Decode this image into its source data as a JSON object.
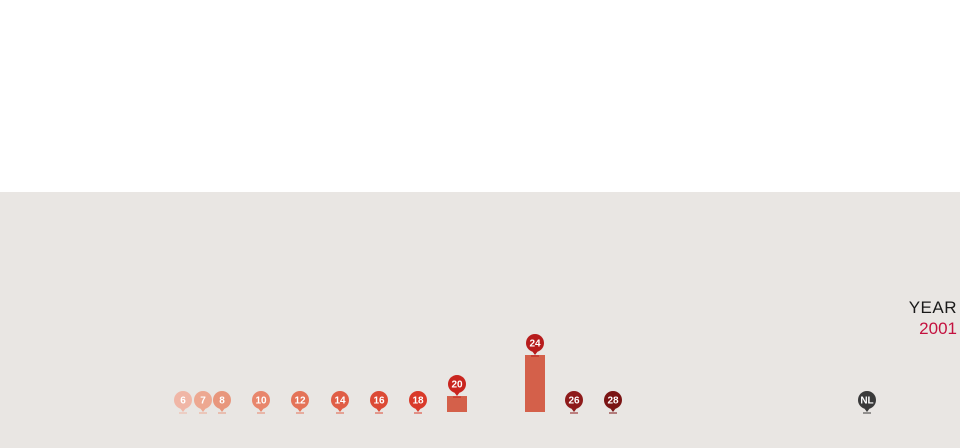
{
  "year": {
    "label": "YEAR",
    "value": "2001"
  },
  "chart_data": {
    "type": "bar",
    "categories": [
      "6",
      "7",
      "8",
      "10",
      "12",
      "14",
      "16",
      "18",
      "20",
      "24",
      "26",
      "28",
      "NL"
    ],
    "values": [
      0,
      0,
      0,
      0,
      0,
      0,
      0,
      0,
      0.28,
      1,
      0,
      0,
      0
    ],
    "colors": [
      "#f0b6a6",
      "#eda891",
      "#e8967c",
      "#e8866c",
      "#e47358",
      "#e05e46",
      "#dc4a35",
      "#d93a2a",
      "#c9251f",
      "#b71c1c",
      "#8e1b1b",
      "#7a1414",
      "#3a3a3a"
    ],
    "bar_color": "#d4604a"
  }
}
